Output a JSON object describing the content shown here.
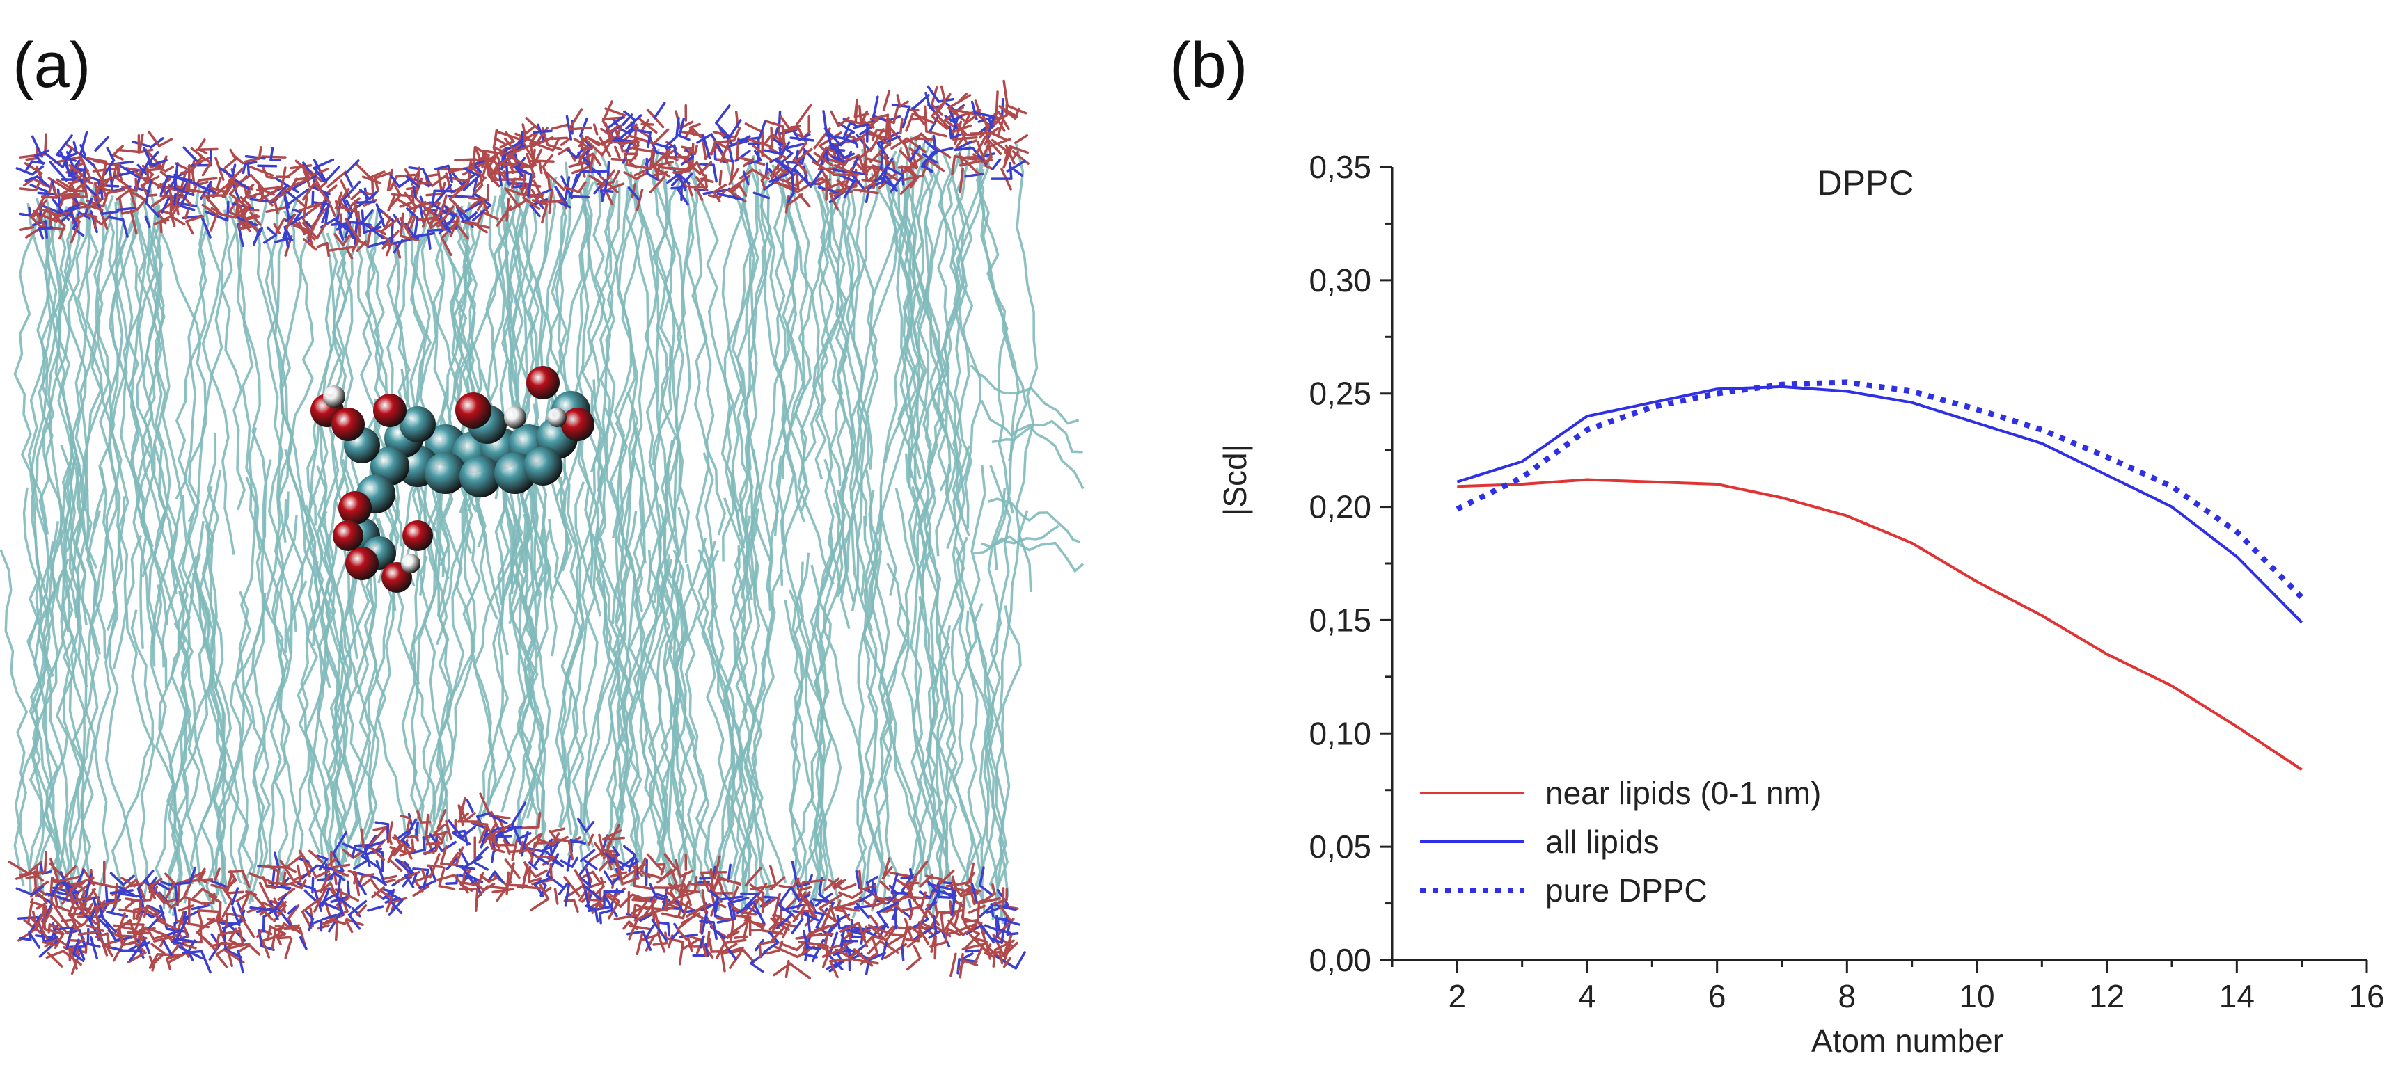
{
  "panels": {
    "a": {
      "label": "(a)"
    },
    "b": {
      "label": "(b)"
    }
  },
  "membrane": {
    "colors": {
      "lipid_tail": "#7fb9ba",
      "headgroup_red": "#b2494b",
      "headgroup_blue": "#3a3fd0",
      "molecule_cyan": "#4a9aa5",
      "molecule_red": "#b8101a",
      "molecule_white": "#f2f2f2"
    }
  },
  "chart_data": {
    "type": "line",
    "title": "DPPC",
    "xlabel": "Atom number",
    "ylabel": "|Scd|",
    "xlim": [
      1,
      16
    ],
    "ylim": [
      0,
      0.35
    ],
    "x_ticks": [
      "2",
      "4",
      "6",
      "8",
      "10",
      "12",
      "14",
      "16"
    ],
    "y_ticks": [
      "0,00",
      "0,05",
      "0,10",
      "0,15",
      "0,20",
      "0,25",
      "0,30",
      "0,35"
    ],
    "legend_position": "bottom-left",
    "grid": false,
    "series": [
      {
        "name": "near lipids (0-1 nm)",
        "color": "#e03434",
        "style": "solid",
        "x": [
          2,
          3,
          4,
          5,
          6,
          7,
          8,
          9,
          10,
          11,
          12,
          13,
          14,
          15
        ],
        "y": [
          0.209,
          0.21,
          0.212,
          0.211,
          0.21,
          0.204,
          0.196,
          0.184,
          0.167,
          0.152,
          0.135,
          0.121,
          0.103,
          0.084
        ]
      },
      {
        "name": "all lipids",
        "color": "#2f2fe6",
        "style": "solid",
        "x": [
          2,
          3,
          4,
          5,
          6,
          7,
          8,
          9,
          10,
          11,
          12,
          13,
          14,
          15
        ],
        "y": [
          0.211,
          0.22,
          0.24,
          0.246,
          0.252,
          0.253,
          0.251,
          0.246,
          0.237,
          0.228,
          0.214,
          0.2,
          0.178,
          0.149
        ]
      },
      {
        "name": "pure DPPC",
        "color": "#2f2fe6",
        "style": "dotted",
        "x": [
          2,
          3,
          4,
          5,
          6,
          7,
          8,
          9,
          10,
          11,
          12,
          13,
          14,
          15
        ],
        "y": [
          0.199,
          0.213,
          0.234,
          0.244,
          0.25,
          0.254,
          0.255,
          0.251,
          0.243,
          0.234,
          0.222,
          0.209,
          0.189,
          0.16
        ]
      }
    ]
  }
}
